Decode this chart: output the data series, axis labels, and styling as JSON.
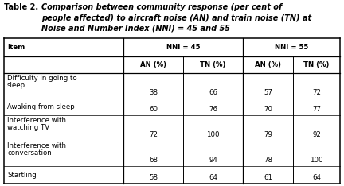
{
  "title_prefix": "Table 2.",
  "title_lines": [
    "Comparison between community response (per cent of",
    "people affected) to aircraft noise (AN) and train noise (TN) at",
    "Noise and Number Index (NNI) = 45 and 55"
  ],
  "col_headers_level1": [
    "Item",
    "NNI = 45",
    "NNI = 55"
  ],
  "col_headers_level2": [
    "AN (%)",
    "TN (%)",
    "AN (%)",
    "TN (%)"
  ],
  "rows": [
    {
      "item": "Difficulty in going to\nsleep",
      "an45": "38",
      "tn45": "66",
      "an55": "57",
      "tn55": "72"
    },
    {
      "item": "Awaking from sleep",
      "an45": "60",
      "tn45": "76",
      "an55": "70",
      "tn55": "77"
    },
    {
      "item": "Interference with\nwatching TV",
      "an45": "72",
      "tn45": "100",
      "an55": "79",
      "tn55": "92"
    },
    {
      "item": "Interference with\nconversation",
      "an45": "68",
      "tn45": "94",
      "an55": "78",
      "tn55": "100"
    },
    {
      "item": "Startling",
      "an45": "58",
      "tn45": "64",
      "an55": "61",
      "tn55": "64"
    }
  ],
  "bg_color": "#ffffff",
  "text_color": "#000000",
  "title_prefix_fontsize": 7.0,
  "title_body_fontsize": 7.0,
  "header_fontsize": 6.2,
  "data_fontsize": 6.2
}
